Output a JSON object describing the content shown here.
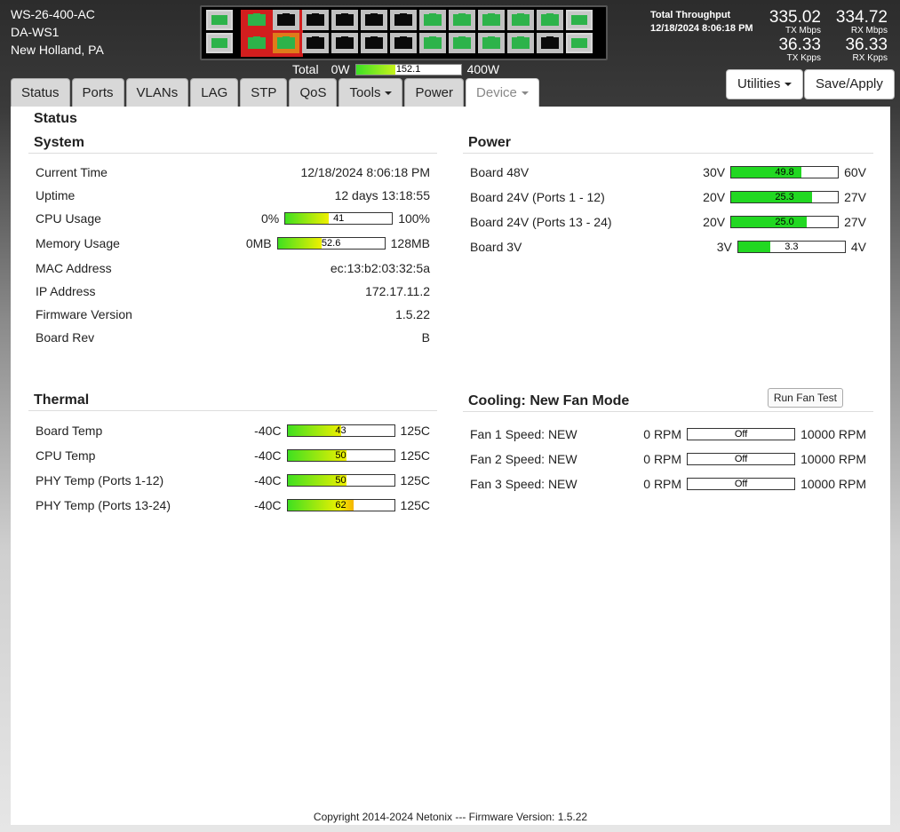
{
  "device": {
    "model": "WS-26-400-AC",
    "name": "DA-WS1",
    "location": "New Holland, PA"
  },
  "ports": {
    "left_sfp": [
      "green",
      "green"
    ],
    "top_row": [
      "red",
      "black",
      "black",
      "black",
      "black",
      "black",
      "green",
      "green",
      "green",
      "green",
      "green",
      "green"
    ],
    "bottom_row": [
      "red",
      "orange",
      "black",
      "black",
      "black",
      "black",
      "green",
      "green",
      "green",
      "green",
      "black",
      "green"
    ]
  },
  "power_total": {
    "label": "Total",
    "min": "0W",
    "max": "400W",
    "value": "152.1",
    "fraction": 0.38
  },
  "throughput": {
    "title": "Total Throughput",
    "timestamp": "12/18/2024 8:06:18 PM",
    "tx_mbps": "335.02",
    "tx_mbps_label": "TX Mbps",
    "rx_mbps": "334.72",
    "rx_mbps_label": "RX Mbps",
    "tx_kpps": "36.33",
    "tx_kpps_label": "TX Kpps",
    "rx_kpps": "36.33",
    "rx_kpps_label": "RX Kpps"
  },
  "tabs": [
    {
      "label": "Status"
    },
    {
      "label": "Ports"
    },
    {
      "label": "VLANs"
    },
    {
      "label": "LAG"
    },
    {
      "label": "STP"
    },
    {
      "label": "QoS"
    },
    {
      "label": "Tools"
    },
    {
      "label": "Power"
    },
    {
      "label": "Device"
    }
  ],
  "header_buttons": {
    "utilities": "Utilities",
    "save": "Save/Apply"
  },
  "page_title": "Status",
  "system": {
    "title": "System",
    "current_time": {
      "label": "Current Time",
      "value": "12/18/2024 8:06:18 PM"
    },
    "uptime": {
      "label": "Uptime",
      "value": "12 days 13:18:55"
    },
    "cpu": {
      "label": "CPU Usage",
      "min": "0%",
      "max": "100%",
      "value": "41",
      "fraction": 0.41
    },
    "memory": {
      "label": "Memory Usage",
      "min": "0MB",
      "max": "128MB",
      "value": "52.6",
      "fraction": 0.41
    },
    "mac": {
      "label": "MAC Address",
      "value": "ec:13:b2:03:32:5a"
    },
    "ip": {
      "label": "IP Address",
      "value": "172.17.11.2"
    },
    "firmware": {
      "label": "Firmware Version",
      "value": "1.5.22"
    },
    "board_rev": {
      "label": "Board Rev",
      "value": "B"
    }
  },
  "power": {
    "title": "Power",
    "rows": [
      {
        "label": "Board 48V",
        "min": "30V",
        "max": "60V",
        "value": "49.8",
        "fraction": 0.66
      },
      {
        "label": "Board 24V (Ports 1 - 12)",
        "min": "20V",
        "max": "27V",
        "value": "25.3",
        "fraction": 0.76
      },
      {
        "label": "Board 24V (Ports 13 - 24)",
        "min": "20V",
        "max": "27V",
        "value": "25.0",
        "fraction": 0.71
      },
      {
        "label": "Board 3V",
        "min": "3V",
        "max": "4V",
        "value": "3.3",
        "fraction": 0.3
      }
    ]
  },
  "thermal": {
    "title": "Thermal",
    "rows": [
      {
        "label": "Board Temp",
        "min": "-40C",
        "max": "125C",
        "value": "43",
        "fraction": 0.5
      },
      {
        "label": "CPU Temp",
        "min": "-40C",
        "max": "125C",
        "value": "50",
        "fraction": 0.55
      },
      {
        "label": "PHY Temp (Ports 1-12)",
        "min": "-40C",
        "max": "125C",
        "value": "50",
        "fraction": 0.55
      },
      {
        "label": "PHY Temp (Ports 13-24)",
        "min": "-40C",
        "max": "125C",
        "value": "62",
        "fraction": 0.62
      }
    ]
  },
  "cooling": {
    "title": "Cooling: New Fan Mode",
    "test_button": "Run Fan Test",
    "rows": [
      {
        "label": "Fan 1 Speed: NEW",
        "min": "0 RPM",
        "max": "10000 RPM",
        "value": "Off",
        "fraction": 0
      },
      {
        "label": "Fan 2 Speed: NEW",
        "min": "0 RPM",
        "max": "10000 RPM",
        "value": "Off",
        "fraction": 0
      },
      {
        "label": "Fan 3 Speed: NEW",
        "min": "0 RPM",
        "max": "10000 RPM",
        "value": "Off",
        "fraction": 0
      }
    ]
  },
  "footer": "Copyright 2014-2024 Netonix --- Firmware Version: 1.5.22",
  "colors": {
    "fill_green": "#22d822",
    "port_green": "#2db34a",
    "port_red": "#d21e1e",
    "port_orange": "#e07b1a"
  }
}
